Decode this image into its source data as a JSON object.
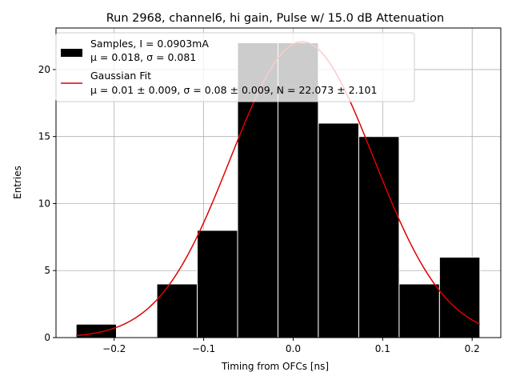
{
  "chart_data": {
    "type": "histogram",
    "title": "Run 2968, channel6, hi gain, Pulse w/ 15.0 dB Attenuation",
    "xlabel": "Timing from OFCs [ns]",
    "ylabel": "Entries",
    "xlim": [
      -0.265,
      0.232
    ],
    "ylim": [
      0,
      23.1
    ],
    "grid": true,
    "legend_position": "top-left",
    "x_ticks": [
      {
        "value": -0.2,
        "label": "−0.2"
      },
      {
        "value": -0.1,
        "label": "−0.1"
      },
      {
        "value": 0.0,
        "label": "0.0"
      },
      {
        "value": 0.1,
        "label": "0.1"
      },
      {
        "value": 0.2,
        "label": "0.2"
      }
    ],
    "y_ticks": [
      {
        "value": 0,
        "label": "0"
      },
      {
        "value": 5,
        "label": "5"
      },
      {
        "value": 10,
        "label": "10"
      },
      {
        "value": 15,
        "label": "15"
      },
      {
        "value": 20,
        "label": "20"
      }
    ],
    "bins": [
      {
        "x0": -0.2425,
        "x1": -0.1975,
        "count": 1
      },
      {
        "x0": -0.1975,
        "x1": -0.1523,
        "count": 0
      },
      {
        "x0": -0.1523,
        "x1": -0.1072,
        "count": 4
      },
      {
        "x0": -0.1072,
        "x1": -0.0621,
        "count": 8
      },
      {
        "x0": -0.0621,
        "x1": -0.017,
        "count": 22
      },
      {
        "x0": -0.017,
        "x1": 0.0281,
        "count": 22
      },
      {
        "x0": 0.0281,
        "x1": 0.0733,
        "count": 16
      },
      {
        "x0": 0.0733,
        "x1": 0.1184,
        "count": 15
      },
      {
        "x0": 0.1184,
        "x1": 0.1635,
        "count": 4
      },
      {
        "x0": 0.1635,
        "x1": 0.2086,
        "count": 6
      }
    ],
    "bar_color": "#000000",
    "bar_edge_color": "#ffffff",
    "fit": {
      "type": "gaussian",
      "mu": 0.01,
      "sigma": 0.08,
      "N": 22.073,
      "x_range": [
        -0.2425,
        0.2086
      ],
      "color": "#e00000"
    },
    "legend": [
      {
        "kind": "histogram",
        "line1": "Samples, I = 0.0903mA",
        "line2": "μ = 0.018, σ = 0.081"
      },
      {
        "kind": "fit",
        "line1": "Gaussian Fit",
        "line2": "μ = 0.01 ± 0.009, σ = 0.08 ± 0.009, N = 22.073 ± 2.101"
      }
    ]
  }
}
